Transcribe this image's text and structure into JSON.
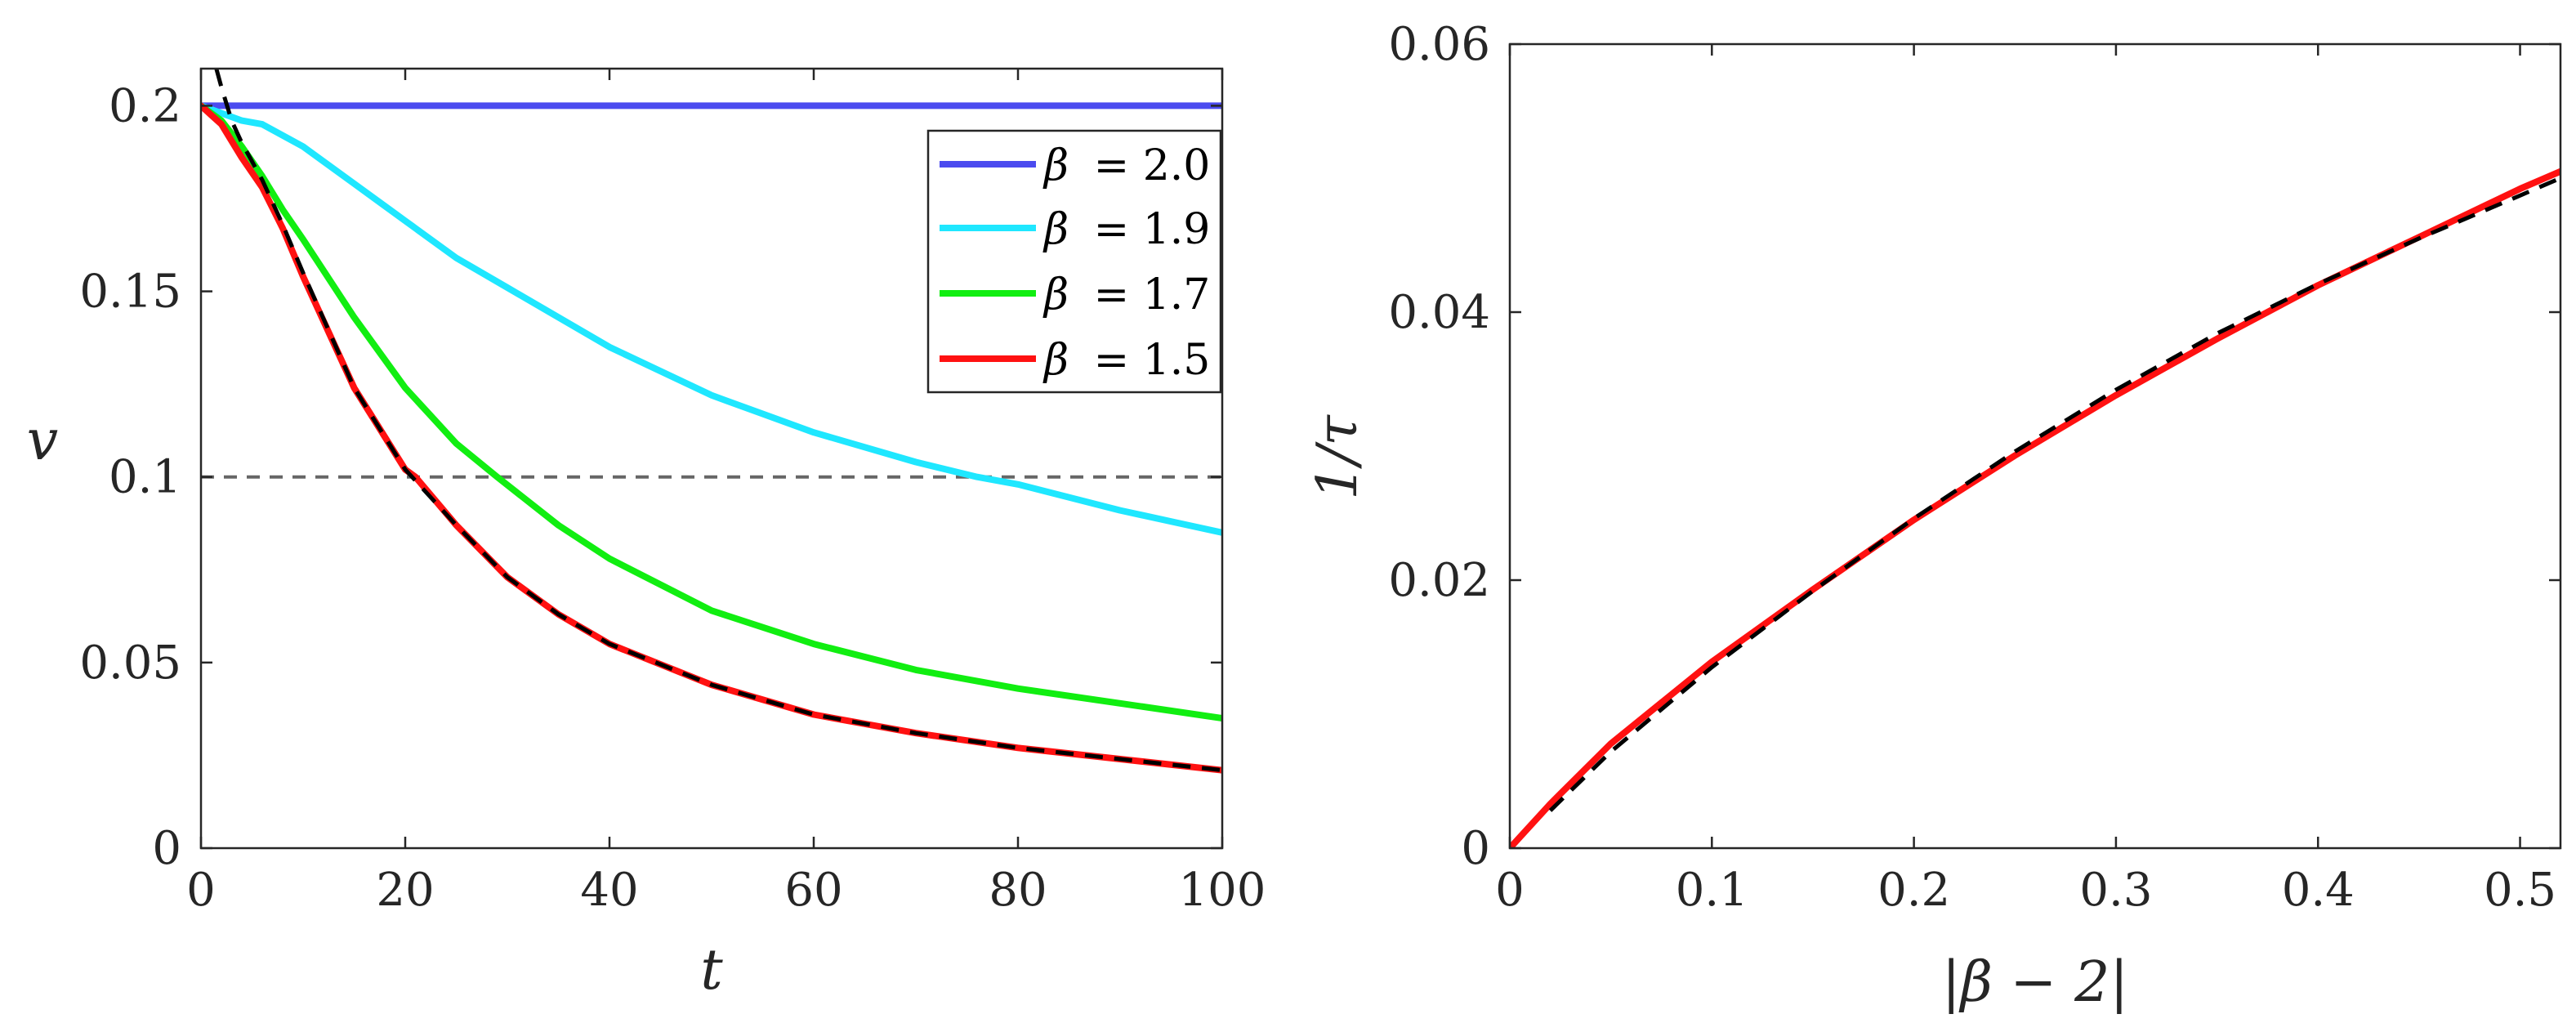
{
  "chart_data": [
    {
      "type": "line",
      "xlabel": "t",
      "ylabel": "v",
      "xlim": [
        0,
        100
      ],
      "ylim": [
        0,
        0.21
      ],
      "xticks": [
        0,
        20,
        40,
        60,
        80,
        100
      ],
      "xtick_labels": [
        "0",
        "20",
        "40",
        "60",
        "80",
        "100"
      ],
      "yticks": [
        0,
        0.05,
        0.1,
        0.15,
        0.2
      ],
      "ytick_labels": [
        "0",
        "0.05",
        "0.1",
        "0.15",
        "0.2"
      ],
      "legend_position": "top-right",
      "reference_line": {
        "y": 0.1,
        "style": "dashed",
        "color": "#666666"
      },
      "series": [
        {
          "name": "β = 2.0",
          "legend_prefix": "β",
          "legend_value": "= 2.0",
          "color": "#4B4BEF",
          "x": [
            0,
            100
          ],
          "y": [
            0.2,
            0.2
          ]
        },
        {
          "name": "β = 1.9",
          "legend_prefix": "β",
          "legend_value": "= 1.9",
          "color": "#1FE7FF",
          "x": [
            0,
            2,
            4,
            6,
            8,
            10,
            15,
            20,
            25,
            30,
            40,
            50,
            60,
            70,
            76,
            80,
            90,
            100
          ],
          "y": [
            0.2,
            0.198,
            0.196,
            0.195,
            0.192,
            0.189,
            0.179,
            0.169,
            0.159,
            0.151,
            0.135,
            0.122,
            0.112,
            0.104,
            0.1,
            0.098,
            0.091,
            0.085
          ]
        },
        {
          "name": "β = 1.7",
          "legend_prefix": "β",
          "legend_value": "= 1.7",
          "color": "#11EE11",
          "x": [
            0,
            2,
            4,
            6,
            8,
            10,
            15,
            20,
            25,
            29,
            35,
            40,
            50,
            60,
            70,
            80,
            90,
            100
          ],
          "y": [
            0.2,
            0.196,
            0.189,
            0.181,
            0.172,
            0.164,
            0.143,
            0.124,
            0.109,
            0.1,
            0.087,
            0.078,
            0.064,
            0.055,
            0.048,
            0.043,
            0.039,
            0.035
          ]
        },
        {
          "name": "β = 1.5",
          "legend_prefix": "β",
          "legend_value": "= 1.5",
          "color": "#FF1111",
          "x": [
            0,
            2,
            4,
            6,
            8,
            10,
            15,
            20,
            21,
            25,
            30,
            35,
            40,
            50,
            60,
            70,
            80,
            90,
            100
          ],
          "y": [
            0.2,
            0.195,
            0.186,
            0.178,
            0.167,
            0.154,
            0.124,
            0.102,
            0.1,
            0.087,
            0.073,
            0.063,
            0.055,
            0.044,
            0.036,
            0.031,
            0.027,
            0.024,
            0.021
          ]
        }
      ],
      "fit_curves": [
        {
          "name": "fit",
          "style": "dashed",
          "color": "#000000",
          "x": [
            1.5,
            2,
            3,
            4,
            5,
            6,
            8,
            10,
            15,
            20,
            25,
            30,
            35,
            40,
            50,
            60,
            70,
            80,
            90,
            100
          ],
          "y": [
            0.21,
            0.205,
            0.196,
            0.19,
            0.185,
            0.18,
            0.168,
            0.155,
            0.124,
            0.102,
            0.087,
            0.073,
            0.063,
            0.055,
            0.044,
            0.036,
            0.031,
            0.027,
            0.024,
            0.021
          ]
        }
      ]
    },
    {
      "type": "line",
      "xlabel": "|β − 2|",
      "ylabel": "1/τ",
      "xlim": [
        0,
        0.52
      ],
      "ylim": [
        0,
        0.06
      ],
      "xticks": [
        0,
        0.1,
        0.2,
        0.3,
        0.4,
        0.5
      ],
      "xtick_labels": [
        "0",
        "0.1",
        "0.2",
        "0.3",
        "0.4",
        "0.5"
      ],
      "yticks": [
        0,
        0.02,
        0.04,
        0.06
      ],
      "ytick_labels": [
        "0",
        "0.02",
        "0.04",
        "0.06"
      ],
      "series": [
        {
          "name": "1/τ",
          "color": "#FF1111",
          "x": [
            0,
            0.02,
            0.05,
            0.1,
            0.15,
            0.2,
            0.25,
            0.3,
            0.35,
            0.4,
            0.45,
            0.5,
            0.52
          ],
          "y": [
            0,
            0.0033,
            0.0078,
            0.0139,
            0.0193,
            0.0245,
            0.0293,
            0.0338,
            0.038,
            0.042,
            0.0456,
            0.0492,
            0.0505
          ]
        }
      ],
      "fit_curves": [
        {
          "name": "fit",
          "style": "dashed",
          "color": "#000000",
          "x": [
            0.02,
            0.05,
            0.1,
            0.15,
            0.2,
            0.25,
            0.3,
            0.35,
            0.4,
            0.45,
            0.5,
            0.52
          ],
          "y": [
            0.0028,
            0.0072,
            0.0135,
            0.0192,
            0.0246,
            0.0296,
            0.0342,
            0.0384,
            0.0421,
            0.0455,
            0.0487,
            0.05
          ]
        }
      ]
    }
  ]
}
